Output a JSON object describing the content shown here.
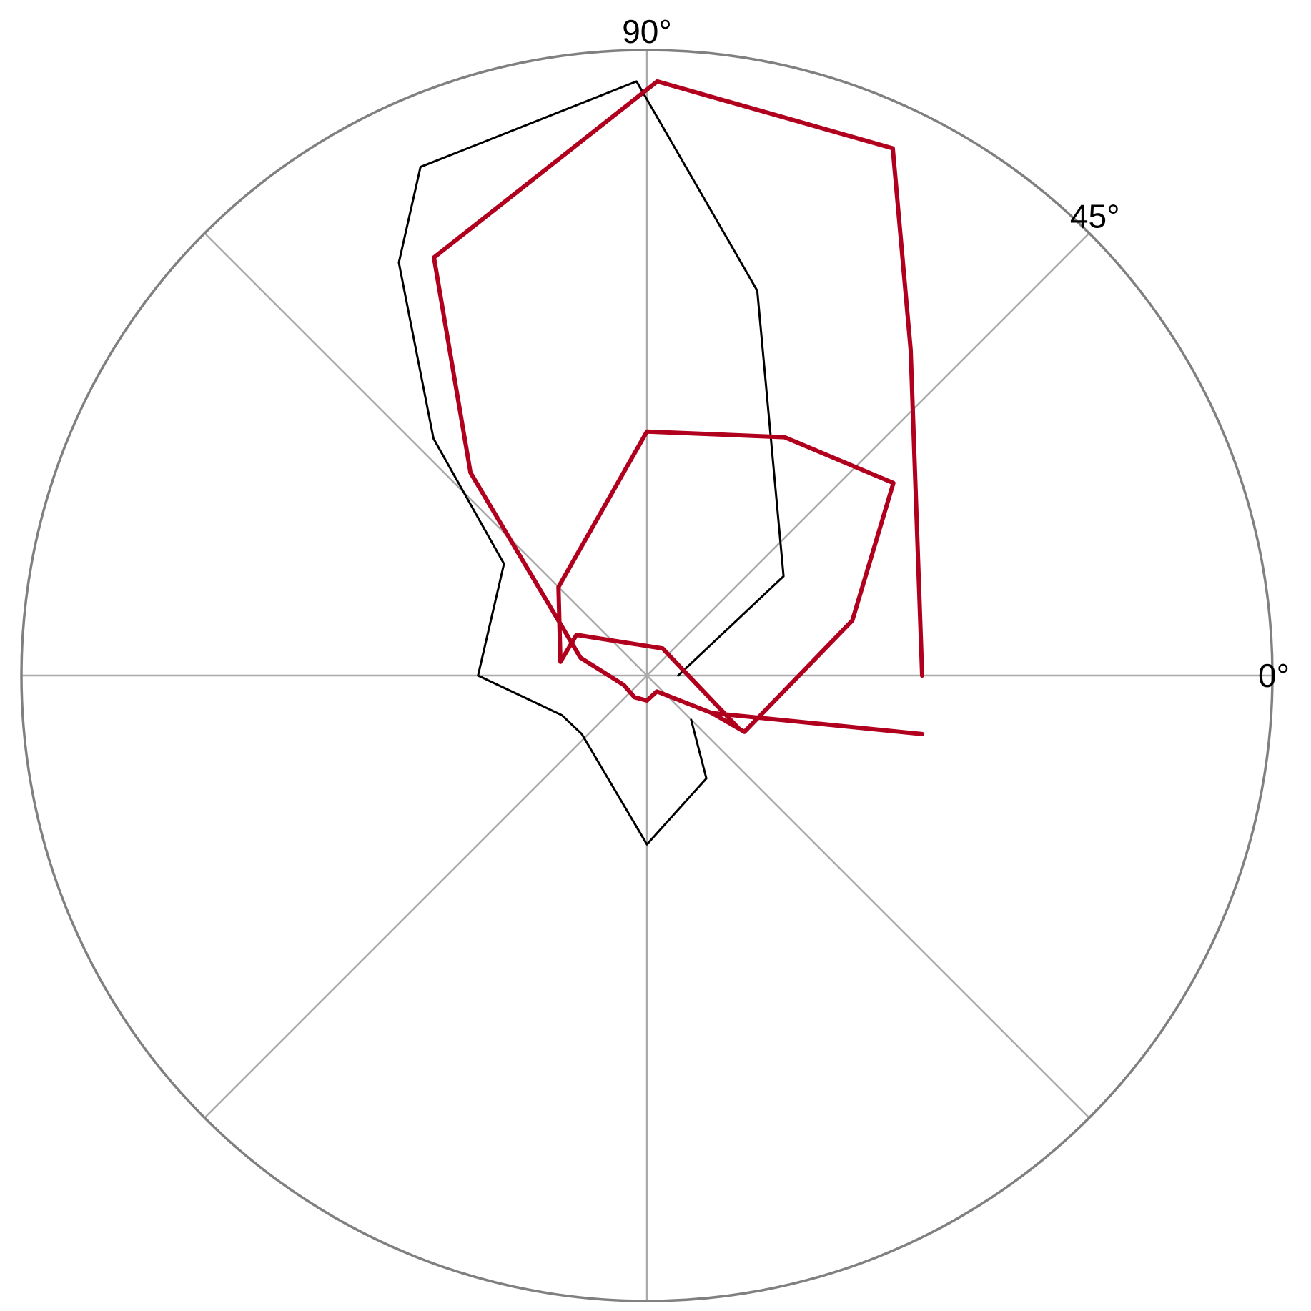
{
  "chart_data": {
    "type": "polar-line",
    "angle_ticks": [
      {
        "angle": 90,
        "label": "90°"
      },
      {
        "angle": 45,
        "label": "45°"
      },
      {
        "angle": 0,
        "label": "0°"
      }
    ],
    "spokes_deg": [
      0,
      45,
      90,
      135,
      180,
      225,
      270,
      315
    ],
    "r_max": 1.0,
    "outer_ring_color": "#808080",
    "spoke_color": "#aaaaaa",
    "series": [
      {
        "color": "#000000",
        "closed": false,
        "points": [
          {
            "theta": 0,
            "r": 0.05
          },
          {
            "theta": 36,
            "r": 0.27
          },
          {
            "theta": 74,
            "r": 0.64
          },
          {
            "theta": 91,
            "r": 0.95
          },
          {
            "theta": 114,
            "r": 0.89
          },
          {
            "theta": 121,
            "r": 0.77
          },
          {
            "theta": 132,
            "r": 0.51
          },
          {
            "theta": 142,
            "r": 0.29
          },
          {
            "theta": 180,
            "r": 0.27
          },
          {
            "theta": 205,
            "r": 0.15
          },
          {
            "theta": 222,
            "r": 0.14
          },
          {
            "theta": 270,
            "r": 0.27
          },
          {
            "theta": 300,
            "r": 0.19
          },
          {
            "theta": 315,
            "r": 0.1
          }
        ]
      },
      {
        "color": "#b0001e",
        "closed": false,
        "points": [
          {
            "theta": 0,
            "r": 0.44
          },
          {
            "theta": 51,
            "r": 0.67
          },
          {
            "theta": 65,
            "r": 0.93
          },
          {
            "theta": 89,
            "r": 0.95
          },
          {
            "theta": 117,
            "r": 0.75
          },
          {
            "theta": 131,
            "r": 0.43
          },
          {
            "theta": 165,
            "r": 0.11
          },
          {
            "theta": 202,
            "r": 0.04
          },
          {
            "theta": 240,
            "r": 0.04
          },
          {
            "theta": 270,
            "r": 0.04
          },
          {
            "theta": 302,
            "r": 0.03
          },
          {
            "theta": 330,
            "r": 0.12
          },
          {
            "theta": 330,
            "r": 0.17
          },
          {
            "theta": 60,
            "r": 0.05
          },
          {
            "theta": 150,
            "r": 0.13
          },
          {
            "theta": 171,
            "r": 0.14
          },
          {
            "theta": 135,
            "r": 0.2
          },
          {
            "theta": 90,
            "r": 0.39
          },
          {
            "theta": 60,
            "r": 0.44
          },
          {
            "theta": 38,
            "r": 0.5
          },
          {
            "theta": 15,
            "r": 0.34
          },
          {
            "theta": 330,
            "r": 0.18
          },
          {
            "theta": 330,
            "r": 0.12
          },
          {
            "theta": 348,
            "r": 0.45
          }
        ]
      }
    ]
  }
}
